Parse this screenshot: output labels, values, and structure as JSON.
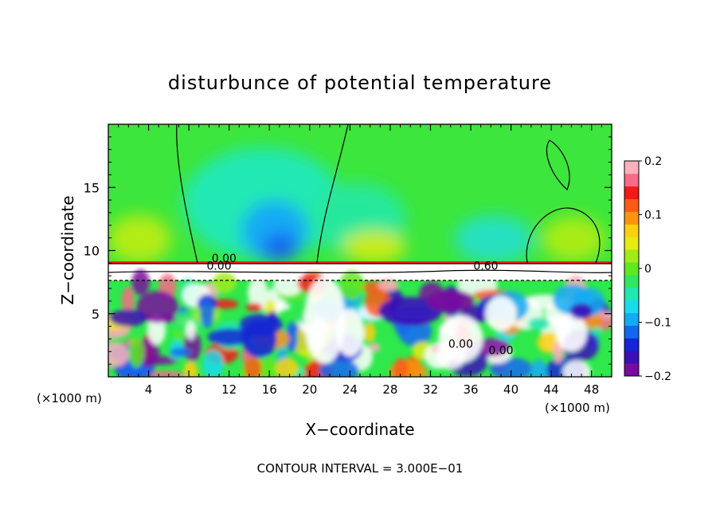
{
  "chart_data": {
    "type": "heatmap",
    "title": "disturbunce of potential temperature",
    "xlabel": "X−coordinate",
    "ylabel": "Z−coordinate",
    "x_unit_left": "(×1000 m)",
    "x_unit_right": "(×1000 m)",
    "footer": "CONTOUR INTERVAL = 3.000E−01",
    "xlim": [
      0,
      50
    ],
    "ylim": [
      0,
      20
    ],
    "x_ticks": [
      4,
      8,
      12,
      16,
      20,
      24,
      28,
      32,
      36,
      40,
      44,
      48
    ],
    "x_tick_labels": [
      "4",
      "8",
      "12",
      "16",
      "20",
      "24",
      "28",
      "32",
      "36",
      "40",
      "44",
      "48"
    ],
    "y_ticks": [
      5,
      10,
      15
    ],
    "y_tick_labels": [
      "5",
      "10",
      "15"
    ],
    "colorbar": {
      "min": -0.2,
      "max": 0.2,
      "ticks": [
        0.2,
        0.1,
        0,
        -0.1,
        -0.2
      ],
      "tick_labels": [
        "0.2",
        "0.1",
        "0",
        "−0.1",
        "−0.2"
      ],
      "colors": [
        "#7a0a9e",
        "#3a10b8",
        "#1426d6",
        "#1468f0",
        "#14aaf5",
        "#18dcee",
        "#20e8b0",
        "#30e860",
        "#60e820",
        "#a0ec18",
        "#e4ec10",
        "#fcd010",
        "#fc9410",
        "#fc5a18",
        "#f41818",
        "#f86a86",
        "#fcb0bc"
      ]
    },
    "contour_labels": [
      {
        "text": "0.00",
        "x": 11.5,
        "z": 9.1
      },
      {
        "text": "0.00",
        "x": 11.0,
        "z": 8.5
      },
      {
        "text": "0.60",
        "x": 37.5,
        "z": 8.5
      },
      {
        "text": "0.00",
        "x": 35.0,
        "z": 2.3
      },
      {
        "text": "0.00",
        "x": 39.0,
        "z": 1.8
      }
    ],
    "field_description_values": {
      "upper_layer_base_value": 0.02,
      "upper_minimum": {
        "x": 17,
        "z": 10.5,
        "value": -0.15
      },
      "lower_layer_range": [
        -0.2,
        0.2
      ]
    }
  }
}
